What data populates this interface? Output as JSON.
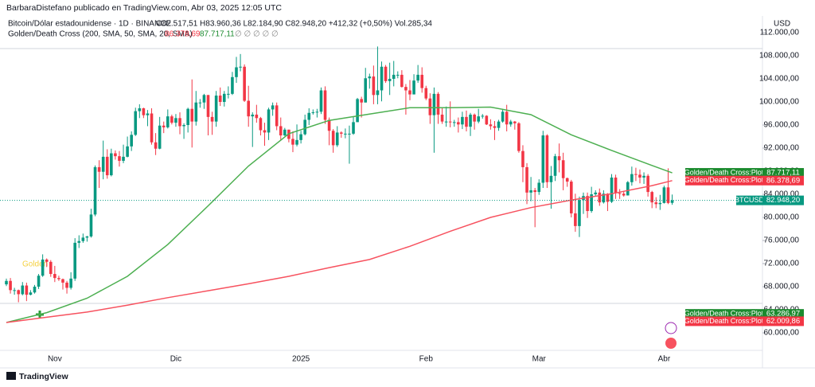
{
  "header": {
    "published": "BarbaraDistefano publicado en TradingView.com, Abr 03, 2025 12:05 UTC",
    "symbol": "Bitcoin/Dólar estadounidense · 1D · BINANCE",
    "ohlc": "O82.517,51 H83.960,36 L82.184,90 C82.948,20 +412,32 (+0,50%) Vol.285,34",
    "indicator": "Golden/Death Cross (200, SMA, 50, SMA, 20, SMA)",
    "indicator_slow": "86.378,69",
    "indicator_fast": "87.717,11",
    "indicator_rest": "∅ ∅ ∅ ∅ ∅",
    "currency": "USD",
    "footer": "TradingView",
    "annotation": "Golden"
  },
  "chart_data": {
    "type": "candlestick",
    "up_color": "#089981",
    "down_color": "#f23645",
    "categories": [
      null,
      null,
      null,
      null,
      null,
      null,
      null,
      null,
      null,
      null,
      null,
      null,
      "Nov",
      null,
      null,
      null,
      null,
      null,
      null,
      null,
      null,
      null,
      null,
      null,
      null,
      null,
      null,
      null,
      null,
      null,
      null,
      null,
      null,
      null,
      null,
      null,
      null,
      null,
      null,
      null,
      null,
      null,
      "Dic",
      null,
      null,
      null,
      null,
      null,
      null,
      null,
      null,
      null,
      null,
      null,
      null,
      null,
      null,
      null,
      null,
      null,
      null,
      null,
      null,
      null,
      null,
      null,
      null,
      null,
      null,
      null,
      null,
      null,
      null,
      "2025",
      null,
      null,
      null,
      null,
      null,
      null,
      null,
      null,
      null,
      null,
      null,
      null,
      null,
      null,
      null,
      null,
      null,
      null,
      null,
      null,
      null,
      null,
      null,
      null,
      null,
      null,
      null,
      null,
      null,
      null,
      "Feb",
      null,
      null,
      null,
      null,
      null,
      null,
      null,
      null,
      null,
      null,
      null,
      null,
      null,
      null,
      null,
      null,
      null,
      null,
      null,
      null,
      null,
      null,
      null,
      null,
      null,
      null,
      null,
      "Mar",
      null,
      null,
      null,
      null,
      null,
      null,
      null,
      null,
      null,
      null,
      null,
      null,
      null,
      null,
      null,
      null,
      null,
      null,
      null,
      null,
      null,
      null,
      null,
      null,
      null,
      null,
      null,
      null,
      null,
      null,
      "Abr",
      null,
      null
    ],
    "ohlc": [
      [
        68400,
        69400,
        68100,
        69000
      ],
      [
        69000,
        69500,
        66800,
        67400
      ],
      [
        67400,
        67800,
        66600,
        67400
      ],
      [
        67400,
        67500,
        65300,
        66700
      ],
      [
        66700,
        68800,
        66500,
        68200
      ],
      [
        68200,
        68700,
        65500,
        66600
      ],
      [
        66600,
        67400,
        66500,
        67000
      ],
      [
        67000,
        68300,
        66800,
        68000
      ],
      [
        68000,
        70200,
        67600,
        69900
      ],
      [
        69900,
        73600,
        69700,
        72700
      ],
      [
        72700,
        72900,
        71400,
        72300
      ],
      [
        72300,
        72600,
        69700,
        70200
      ],
      [
        70200,
        71600,
        68800,
        69500
      ],
      [
        69500,
        69900,
        69000,
        69300
      ],
      [
        69300,
        69400,
        67500,
        68700
      ],
      [
        68700,
        69000,
        66800,
        67800
      ],
      [
        67800,
        70500,
        67500,
        69400
      ],
      [
        69400,
        76400,
        69000,
        75600
      ],
      [
        75600,
        76900,
        74700,
        75900
      ],
      [
        75900,
        77200,
        75600,
        76500
      ],
      [
        76500,
        76800,
        75800,
        76700
      ],
      [
        76700,
        81500,
        76500,
        80500
      ],
      [
        80500,
        89000,
        80200,
        88700
      ],
      [
        88700,
        89900,
        85100,
        87900
      ],
      [
        87900,
        93300,
        86600,
        90500
      ],
      [
        90500,
        91800,
        86700,
        87300
      ],
      [
        87300,
        91900,
        87100,
        91100
      ],
      [
        91100,
        91600,
        90000,
        90600
      ],
      [
        90600,
        91500,
        88800,
        89800
      ],
      [
        89800,
        92600,
        89400,
        90500
      ],
      [
        90500,
        94000,
        90400,
        92300
      ],
      [
        92300,
        94900,
        91500,
        94300
      ],
      [
        94300,
        99000,
        94100,
        98400
      ],
      [
        98400,
        99600,
        97200,
        98900
      ],
      [
        98900,
        99000,
        97200,
        97700
      ],
      [
        97700,
        98600,
        95800,
        98000
      ],
      [
        98000,
        98900,
        92600,
        93000
      ],
      [
        93000,
        94600,
        90800,
        91900
      ],
      [
        91900,
        97400,
        91800,
        95900
      ],
      [
        95900,
        96600,
        94600,
        95600
      ],
      [
        95600,
        98700,
        95400,
        97500
      ],
      [
        97500,
        97800,
        96100,
        96400
      ],
      [
        96400,
        97900,
        95700,
        97200
      ],
      [
        97200,
        98200,
        94400,
        95800
      ],
      [
        95800,
        96300,
        93600,
        96000
      ],
      [
        96000,
        99000,
        94700,
        98800
      ],
      [
        98800,
        103900,
        92100,
        96600
      ],
      [
        96600,
        101900,
        95900,
        99900
      ],
      [
        99900,
        100500,
        99000,
        99900
      ],
      [
        99900,
        101400,
        98800,
        101200
      ],
      [
        101200,
        101200,
        94200,
        97400
      ],
      [
        97400,
        98300,
        94300,
        96600
      ],
      [
        96600,
        101900,
        95700,
        101100
      ],
      [
        101100,
        102500,
        99300,
        100000
      ],
      [
        100000,
        101900,
        99200,
        101400
      ],
      [
        101400,
        102700,
        100600,
        101400
      ],
      [
        101400,
        105200,
        101200,
        104300
      ],
      [
        104300,
        107800,
        103300,
        106000
      ],
      [
        106000,
        108300,
        105300,
        106100
      ],
      [
        106100,
        106500,
        100000,
        100200
      ],
      [
        100200,
        102800,
        95700,
        97500
      ],
      [
        97500,
        98200,
        92200,
        97800
      ],
      [
        97800,
        99500,
        96400,
        97200
      ],
      [
        97200,
        97400,
        94200,
        95100
      ],
      [
        95100,
        96400,
        92400,
        94700
      ],
      [
        94700,
        99000,
        93400,
        98700
      ],
      [
        98700,
        99900,
        97600,
        99400
      ],
      [
        99400,
        99900,
        95100,
        95800
      ],
      [
        95800,
        97300,
        93300,
        94200
      ],
      [
        94200,
        95500,
        94100,
        95200
      ],
      [
        95200,
        95200,
        93000,
        93600
      ],
      [
        93600,
        94900,
        91300,
        92600
      ],
      [
        92600,
        96100,
        92300,
        93400
      ],
      [
        93400,
        95000,
        92800,
        94400
      ],
      [
        94400,
        97800,
        94200,
        96900
      ],
      [
        96900,
        98900,
        96000,
        98100
      ],
      [
        98100,
        98700,
        97800,
        98200
      ],
      [
        98200,
        98800,
        97300,
        98300
      ],
      [
        98300,
        102500,
        97900,
        102000
      ],
      [
        102000,
        102700,
        96200,
        96900
      ],
      [
        96900,
        97300,
        92500,
        95000
      ],
      [
        95000,
        95300,
        91200,
        92500
      ],
      [
        92500,
        95800,
        92200,
        94700
      ],
      [
        94700,
        94900,
        93800,
        94500
      ],
      [
        94500,
        95400,
        93700,
        94500
      ],
      [
        94500,
        95900,
        89300,
        94500
      ],
      [
        94500,
        97400,
        94300,
        96500
      ],
      [
        96500,
        100700,
        96500,
        100500
      ],
      [
        100500,
        100900,
        97300,
        99900
      ],
      [
        99900,
        105900,
        99900,
        104100
      ],
      [
        104100,
        104900,
        102300,
        104400
      ],
      [
        104400,
        106300,
        99600,
        101200
      ],
      [
        101200,
        109600,
        99600,
        102000
      ],
      [
        102000,
        107000,
        100100,
        106100
      ],
      [
        106100,
        106400,
        103300,
        103600
      ],
      [
        103600,
        106800,
        101200,
        104000
      ],
      [
        104000,
        107100,
        102700,
        104700
      ],
      [
        104700,
        105300,
        104100,
        104700
      ],
      [
        104700,
        105500,
        102500,
        102600
      ],
      [
        102600,
        103100,
        97800,
        102000
      ],
      [
        102000,
        103800,
        100300,
        101300
      ],
      [
        101300,
        104800,
        101300,
        103700
      ],
      [
        103700,
        106400,
        103300,
        104700
      ],
      [
        104700,
        106000,
        101600,
        102400
      ],
      [
        102400,
        102800,
        100300,
        100600
      ],
      [
        100600,
        101500,
        96200,
        97700
      ],
      [
        97700,
        102500,
        91200,
        101400
      ],
      [
        101400,
        101700,
        96200,
        97800
      ],
      [
        97800,
        99000,
        96200,
        96600
      ],
      [
        96600,
        99200,
        95700,
        96600
      ],
      [
        96600,
        100100,
        95600,
        96500
      ],
      [
        96500,
        96900,
        95700,
        96500
      ],
      [
        96500,
        97300,
        94700,
        96100
      ],
      [
        96100,
        98300,
        95300,
        97400
      ],
      [
        97400,
        98500,
        94900,
        95700
      ],
      [
        95700,
        98100,
        94100,
        97800
      ],
      [
        97800,
        98000,
        95200,
        96600
      ],
      [
        96600,
        98800,
        96300,
        97500
      ],
      [
        97500,
        97900,
        97100,
        97600
      ],
      [
        97600,
        97700,
        96000,
        96100
      ],
      [
        96100,
        97000,
        95200,
        95800
      ],
      [
        95800,
        96700,
        93400,
        95500
      ],
      [
        95500,
        96900,
        95000,
        96600
      ],
      [
        96600,
        98800,
        96400,
        98300
      ],
      [
        98300,
        99500,
        94900,
        96100
      ],
      [
        96100,
        96900,
        95700,
        96600
      ],
      [
        96600,
        96700,
        95200,
        96300
      ],
      [
        96300,
        96500,
        91200,
        91500
      ],
      [
        91500,
        92500,
        86100,
        88700
      ],
      [
        88700,
        89400,
        82300,
        84300
      ],
      [
        84300,
        87000,
        82800,
        84700
      ],
      [
        84700,
        85100,
        78300,
        84400
      ],
      [
        84400,
        86600,
        83900,
        86000
      ],
      [
        86000,
        95000,
        85100,
        94200
      ],
      [
        94200,
        94400,
        85100,
        86100
      ],
      [
        86100,
        88900,
        81500,
        87200
      ],
      [
        87200,
        91000,
        86300,
        90600
      ],
      [
        90600,
        92800,
        87800,
        89900
      ],
      [
        89900,
        91200,
        84700,
        86800
      ],
      [
        86800,
        86900,
        85300,
        86200
      ],
      [
        86200,
        86500,
        80000,
        80700
      ],
      [
        80700,
        84100,
        77500,
        78500
      ],
      [
        78500,
        83600,
        76600,
        83000
      ],
      [
        83000,
        84300,
        80600,
        83700
      ],
      [
        83700,
        84300,
        79900,
        81100
      ],
      [
        81100,
        85300,
        80800,
        84000
      ],
      [
        84000,
        84700,
        83600,
        84300
      ],
      [
        84300,
        85000,
        82000,
        82600
      ],
      [
        82600,
        84700,
        82400,
        84100
      ],
      [
        84100,
        84200,
        81100,
        82700
      ],
      [
        82700,
        87500,
        82500,
        86900
      ],
      [
        86900,
        87400,
        83200,
        84200
      ],
      [
        84200,
        84900,
        83200,
        84100
      ],
      [
        84100,
        84600,
        83600,
        83800
      ],
      [
        83800,
        86300,
        83800,
        86100
      ],
      [
        86100,
        88800,
        85500,
        87500
      ],
      [
        87500,
        88600,
        86300,
        87400
      ],
      [
        87400,
        88300,
        85900,
        86900
      ],
      [
        86900,
        87800,
        85800,
        87200
      ],
      [
        87200,
        87500,
        83600,
        84400
      ],
      [
        84400,
        84600,
        81600,
        82600
      ],
      [
        82600,
        83500,
        81600,
        82300
      ],
      [
        82300,
        83900,
        81300,
        82500
      ],
      [
        82500,
        85500,
        82400,
        85200
      ],
      [
        85200,
        88500,
        82300,
        82500
      ],
      [
        82517.51,
        83960.36,
        82184.9,
        82948.2
      ]
    ],
    "lines": [
      {
        "color": "#4caf50",
        "x": [
          0,
          10,
          20,
          30,
          40,
          50,
          60,
          70,
          80,
          90,
          100,
          110,
          120,
          130,
          140,
          150,
          160,
          165
        ],
        "values": [
          61800,
          63500,
          66000,
          69800,
          75300,
          82000,
          88900,
          94500,
          96800,
          97900,
          99000,
          99000,
          99100,
          97800,
          94300,
          91600,
          89000,
          87717.11
        ]
      },
      {
        "color": "#f7525f",
        "x": [
          0,
          10,
          20,
          30,
          40,
          50,
          60,
          70,
          80,
          90,
          100,
          110,
          120,
          130,
          140,
          150,
          160,
          165
        ],
        "values": [
          61800,
          62700,
          63600,
          64800,
          66100,
          67300,
          68500,
          69800,
          71300,
          72700,
          75000,
          77600,
          80000,
          81700,
          83000,
          84100,
          85500,
          86378.69
        ]
      }
    ],
    "ylim": [
      56966,
      112138
    ],
    "yticks": [
      {
        "value": 60000,
        "label": "60.000,00"
      },
      {
        "value": 64000,
        "label": "64.000,00"
      },
      {
        "value": 68000,
        "label": "68.000,00"
      },
      {
        "value": 72000,
        "label": "72.000,00"
      },
      {
        "value": 76000,
        "label": "76.000,00"
      },
      {
        "value": 80000,
        "label": "80.000,00"
      },
      {
        "value": 84000,
        "label": "84.000,00"
      },
      {
        "value": 88000,
        "label": "88.000,00"
      },
      {
        "value": 92000,
        "label": "92.000,00"
      },
      {
        "value": 96000,
        "label": "96.000,00"
      },
      {
        "value": 100000,
        "label": "100.000,00"
      },
      {
        "value": 104000,
        "label": "104.000,00"
      },
      {
        "value": 108000,
        "label": "108.000,00"
      },
      {
        "value": 112000,
        "label": "112.000,00"
      }
    ],
    "price_labels": {
      "names": [
        "Golden/Death Cross:Plot",
        "Golden/Death Cross:Plot",
        "BTCUSD",
        "Golden/Death Cross:Plot",
        "Golden/Death Cross:Plot"
      ],
      "values": [
        87717.11,
        86378.69,
        82948.2,
        63286.97,
        62009.86
      ],
      "value_labels": [
        "87.717,11",
        "86.378,69",
        "82.948,20",
        "63.286,97",
        "62.009,86"
      ],
      "colors": [
        "#1b8a2e",
        "#f23645",
        "#089981",
        "#1b8a2e",
        "#f23645"
      ]
    }
  }
}
